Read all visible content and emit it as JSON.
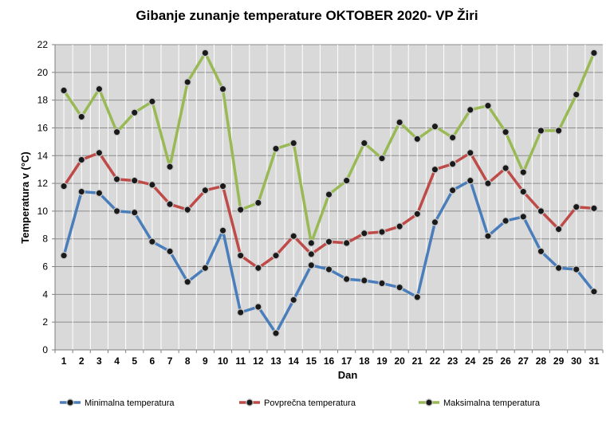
{
  "chart_data": {
    "type": "line",
    "title": "Gibanje zunanje temperature OKTOBER 2020- VP Žiri",
    "xlabel": "Dan",
    "ylabel": "Temperatura v (°C)",
    "ylim": [
      0,
      22
    ],
    "yticks": [
      0,
      2,
      4,
      6,
      8,
      10,
      12,
      14,
      16,
      18,
      20,
      22
    ],
    "grid": true,
    "legend_position": "bottom",
    "categories": [
      "1",
      "2",
      "3",
      "4",
      "5",
      "6",
      "7",
      "8",
      "9",
      "10",
      "11",
      "12",
      "13",
      "14",
      "15",
      "16",
      "17",
      "18",
      "19",
      "20",
      "21",
      "22",
      "23",
      "24",
      "25",
      "26",
      "27",
      "28",
      "29",
      "30",
      "31"
    ],
    "series": [
      {
        "name": "Minimalna temperatura",
        "color": "#4a7ebb",
        "values": [
          6.8,
          11.4,
          11.3,
          10.0,
          9.9,
          7.8,
          7.1,
          4.9,
          5.9,
          8.6,
          2.7,
          3.1,
          1.2,
          3.6,
          6.1,
          5.8,
          5.1,
          5.0,
          4.8,
          4.5,
          3.8,
          9.2,
          11.5,
          12.2,
          8.2,
          9.3,
          9.6,
          7.1,
          5.9,
          5.8,
          4.2
        ]
      },
      {
        "name": "Povprečna temperatura",
        "color": "#be4b48",
        "values": [
          11.8,
          13.7,
          14.2,
          12.3,
          12.2,
          11.9,
          10.5,
          10.1,
          11.5,
          11.8,
          6.8,
          5.9,
          6.8,
          8.2,
          6.9,
          7.8,
          7.7,
          8.4,
          8.5,
          8.9,
          9.8,
          13.0,
          13.4,
          14.2,
          12.0,
          13.1,
          11.4,
          10.0,
          8.7,
          10.3,
          10.2
        ]
      },
      {
        "name": "Maksimalna temperatura",
        "color": "#98b954",
        "values": [
          18.7,
          16.8,
          18.8,
          15.7,
          17.1,
          17.9,
          13.2,
          19.3,
          21.4,
          18.8,
          10.1,
          10.6,
          14.5,
          14.9,
          7.7,
          11.2,
          12.2,
          14.9,
          13.8,
          16.4,
          15.2,
          16.1,
          15.3,
          17.3,
          17.6,
          15.7,
          12.8,
          15.8,
          15.8,
          18.4,
          21.4
        ]
      }
    ]
  }
}
